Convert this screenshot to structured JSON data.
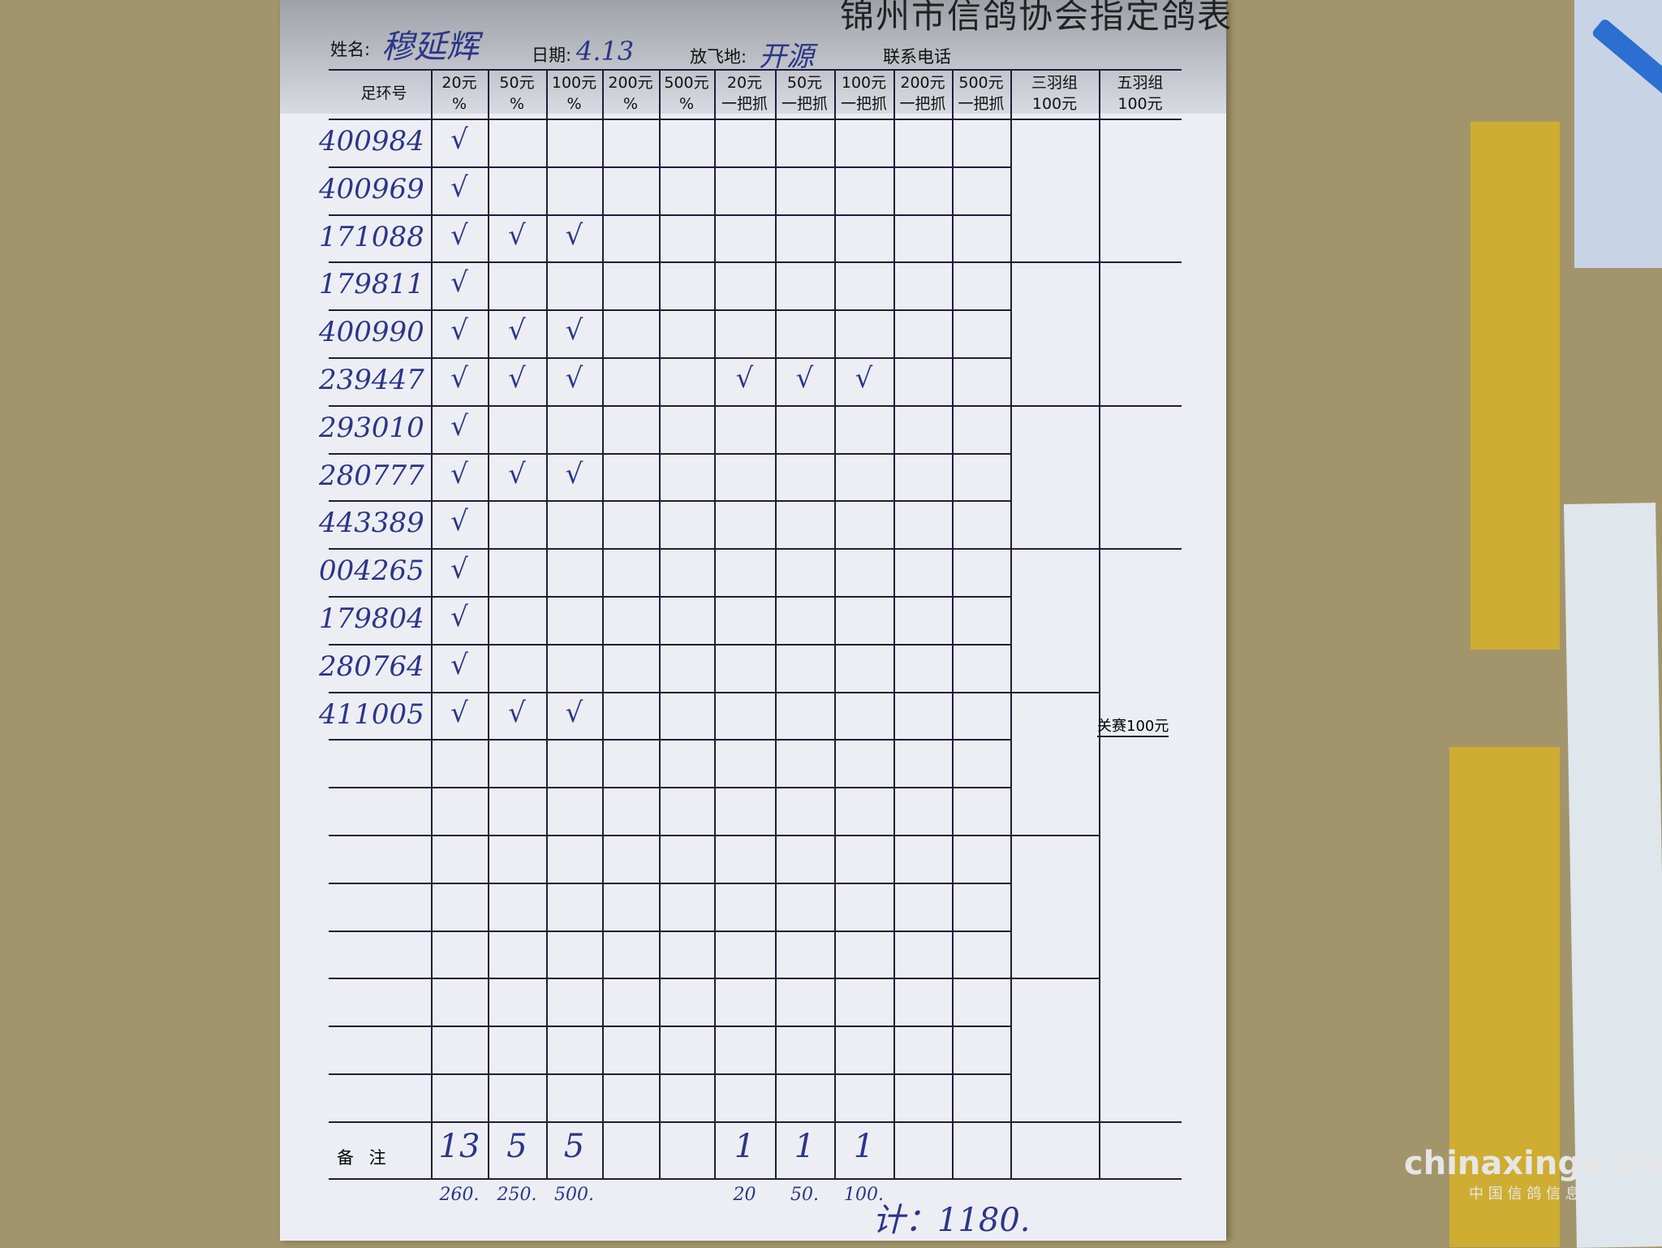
{
  "form": {
    "title": "锦州市信鸽协会指定鸽表",
    "name_label": "姓名:",
    "name_value": "穆延辉",
    "date_label": "日期:",
    "date_value": "4.13",
    "release_label": "放飞地:",
    "release_value": "开源",
    "phone_label": "联系电话",
    "columns": [
      {
        "top": "足环号",
        "bottom": ""
      },
      {
        "top": "20元",
        "bottom": "%"
      },
      {
        "top": "50元",
        "bottom": "%"
      },
      {
        "top": "100元",
        "bottom": "%"
      },
      {
        "top": "200元",
        "bottom": "%"
      },
      {
        "top": "500元",
        "bottom": "%"
      },
      {
        "top": "20元",
        "bottom": "一把抓"
      },
      {
        "top": "50元",
        "bottom": "一把抓"
      },
      {
        "top": "100元",
        "bottom": "一把抓"
      },
      {
        "top": "200元",
        "bottom": "一把抓"
      },
      {
        "top": "500元",
        "bottom": "一把抓"
      },
      {
        "top": "三羽组",
        "bottom": "100元"
      },
      {
        "top": "五羽组",
        "bottom": "100元"
      }
    ],
    "check_mark": "√",
    "rows": [
      {
        "ring": "400984",
        "checks": [
          0
        ]
      },
      {
        "ring": "400969",
        "checks": [
          0
        ]
      },
      {
        "ring": "171088",
        "checks": [
          0,
          1,
          2
        ]
      },
      {
        "ring": "179811",
        "checks": [
          0
        ]
      },
      {
        "ring": "400990",
        "checks": [
          0,
          1,
          2
        ]
      },
      {
        "ring": "239447",
        "checks": [
          0,
          1,
          2,
          5,
          6,
          7
        ]
      },
      {
        "ring": "293010",
        "checks": [
          0
        ]
      },
      {
        "ring": "280777",
        "checks": [
          0,
          1,
          2
        ]
      },
      {
        "ring": "443389",
        "checks": [
          0
        ]
      },
      {
        "ring": "004265",
        "checks": [
          0
        ]
      },
      {
        "ring": "179804",
        "checks": [
          0
        ]
      },
      {
        "ring": "280764",
        "checks": [
          0
        ]
      },
      {
        "ring": "411005",
        "checks": [
          0,
          1,
          2
        ]
      }
    ],
    "five_group_note": "关赛100元",
    "remarks_label": "备 注",
    "remarks_counts": [
      "13",
      "5",
      "5",
      "",
      "",
      "1",
      "1",
      "1",
      "",
      ""
    ],
    "remarks_amounts": [
      "260.",
      "250.",
      "500.",
      "",
      "",
      "20",
      "50.",
      "100.",
      "",
      ""
    ],
    "total": "计：1180."
  },
  "watermark": {
    "logo": "chinaxinge.com",
    "tagline": "中 国 信 鸽 信 息 网"
  }
}
